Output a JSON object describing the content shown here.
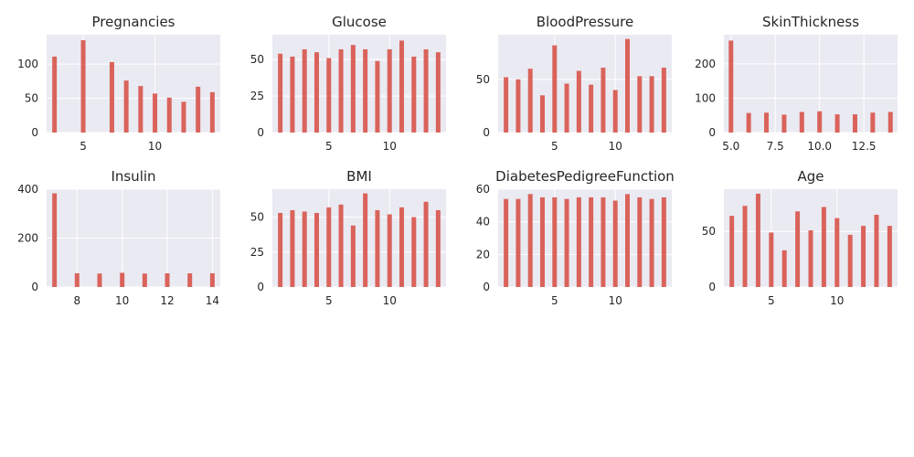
{
  "figure": {
    "bar_color": "#d9635b",
    "axes_bg": "#eaeaf2",
    "grid_color": "#ffffff",
    "text_color": "#262626"
  },
  "chart_data": [
    {
      "type": "bar",
      "title": "Pregnancies",
      "xlabel": "",
      "ylabel": "",
      "xlim": [
        2.45,
        14.55
      ],
      "ylim": [
        0,
        143
      ],
      "xticks": [
        5,
        10
      ],
      "yticks": [
        0,
        50,
        100
      ],
      "grid": true,
      "x": [
        3,
        5,
        7,
        8,
        9,
        10,
        11,
        12,
        13,
        14
      ],
      "values": [
        111,
        135,
        103,
        76,
        68,
        57,
        51,
        45,
        67,
        59
      ]
    },
    {
      "type": "bar",
      "title": "Glucose",
      "xlabel": "",
      "ylabel": "",
      "xlim": [
        0.35,
        14.65
      ],
      "ylim": [
        0,
        67
      ],
      "xticks": [
        5,
        10
      ],
      "yticks": [
        0,
        25,
        50
      ],
      "grid": true,
      "x": [
        1,
        2,
        3,
        4,
        5,
        6,
        7,
        8,
        9,
        10,
        11,
        12,
        13,
        14
      ],
      "values": [
        54,
        52,
        57,
        55,
        51,
        57,
        60,
        57,
        49,
        57,
        63,
        52,
        57,
        55
      ]
    },
    {
      "type": "bar",
      "title": "BloodPressure",
      "xlabel": "",
      "ylabel": "",
      "xlim": [
        0.35,
        14.65
      ],
      "ylim": [
        0,
        92
      ],
      "xticks": [
        5,
        10
      ],
      "yticks": [
        0,
        50
      ],
      "grid": true,
      "x": [
        1,
        2,
        3,
        4,
        5,
        6,
        7,
        8,
        9,
        10,
        11,
        12,
        13,
        14
      ],
      "values": [
        52,
        50,
        60,
        35,
        82,
        46,
        58,
        45,
        61,
        40,
        88,
        53,
        53,
        61
      ]
    },
    {
      "type": "bar",
      "title": "SkinThickness",
      "xlabel": "",
      "ylabel": "",
      "xlim": [
        4.6,
        14.4
      ],
      "ylim": [
        0,
        285
      ],
      "xticks": [
        5.0,
        7.5,
        10.0,
        12.5
      ],
      "xtick_labels": [
        "5.0",
        "7.5",
        "10.0",
        "12.5"
      ],
      "yticks": [
        0,
        100,
        200
      ],
      "grid": true,
      "x": [
        5,
        6,
        7,
        8,
        9,
        10,
        11,
        12,
        13,
        14
      ],
      "values": [
        268,
        57,
        58,
        52,
        60,
        62,
        53,
        53,
        58,
        60
      ]
    },
    {
      "type": "bar",
      "title": "Insulin",
      "xlabel": "",
      "ylabel": "",
      "xlim": [
        6.65,
        14.35
      ],
      "ylim": [
        0,
        400
      ],
      "xticks": [
        8,
        10,
        12,
        14
      ],
      "yticks": [
        0,
        200,
        400
      ],
      "grid": true,
      "x": [
        7,
        8,
        9,
        10,
        11,
        12,
        13,
        14
      ],
      "values": [
        383,
        56,
        55,
        58,
        55,
        56,
        56,
        56
      ]
    },
    {
      "type": "bar",
      "title": "BMI",
      "xlabel": "",
      "ylabel": "",
      "xlim": [
        0.35,
        14.65
      ],
      "ylim": [
        0,
        70
      ],
      "xticks": [
        5,
        10
      ],
      "yticks": [
        0,
        25,
        50
      ],
      "grid": true,
      "x": [
        1,
        2,
        3,
        4,
        5,
        6,
        7,
        8,
        9,
        10,
        11,
        12,
        13,
        14
      ],
      "values": [
        53,
        55,
        54,
        53,
        57,
        59,
        44,
        67,
        55,
        52,
        57,
        50,
        61,
        55
      ]
    },
    {
      "type": "bar",
      "title": "DiabetesPedigreeFunction",
      "xlabel": "",
      "ylabel": "",
      "xlim": [
        0.35,
        14.65
      ],
      "ylim": [
        0,
        60
      ],
      "xticks": [
        5,
        10
      ],
      "yticks": [
        0,
        20,
        40,
        60
      ],
      "grid": true,
      "x": [
        1,
        2,
        3,
        4,
        5,
        6,
        7,
        8,
        9,
        10,
        11,
        12,
        13,
        14
      ],
      "values": [
        54,
        54,
        57,
        55,
        55,
        54,
        55,
        55,
        55,
        53,
        57,
        55,
        54,
        55
      ]
    },
    {
      "type": "bar",
      "title": "Age",
      "xlabel": "",
      "ylabel": "",
      "xlim": [
        1.4,
        14.6
      ],
      "ylim": [
        0,
        88
      ],
      "xticks": [
        5,
        10
      ],
      "yticks": [
        0,
        50
      ],
      "grid": true,
      "x": [
        2,
        3,
        4,
        5,
        6,
        7,
        8,
        9,
        10,
        11,
        12,
        13,
        14
      ],
      "values": [
        64,
        73,
        84,
        49,
        33,
        68,
        51,
        72,
        62,
        47,
        55,
        65,
        55
      ]
    }
  ]
}
